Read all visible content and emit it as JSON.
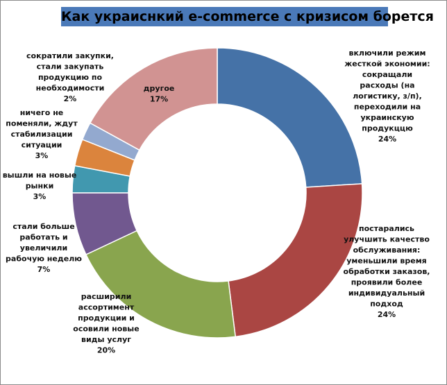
{
  "chart_data": {
    "type": "pie",
    "variant": "donut",
    "title": "Как украиснкий e-commerce с кризисом борется",
    "colors": {
      "title_background": "#4a79b8",
      "slice_1": "#4572a7",
      "slice_2": "#aa4643",
      "slice_3": "#89a54e",
      "slice_4": "#71588f",
      "slice_5": "#4198af",
      "slice_6": "#db843d",
      "slice_7": "#93a9cf",
      "slice_8": "#d19392"
    },
    "slices": [
      {
        "label_lines": [
          "включили режим",
          "жесткой экономии:",
          "сокращали",
          "расходы (на",
          "логистику, з/п),",
          "переходили на",
          "украинскую",
          "продукццю"
        ],
        "value_label": "24%",
        "value": 24
      },
      {
        "label_lines": [
          "постарались",
          "улучшить качество",
          "обслуживания:",
          "уменьшили время",
          "обработки заказов,",
          "проявили более",
          "индивидуальный",
          "подход"
        ],
        "value_label": "24%",
        "value": 24
      },
      {
        "label_lines": [
          "расширили",
          "ассортимент",
          "продукции и",
          "осовили новые",
          "виды услуг"
        ],
        "value_label": "20%",
        "value": 20
      },
      {
        "label_lines": [
          "стали больше",
          "работать и",
          "увеличили",
          "рабочую неделю"
        ],
        "value_label": "7%",
        "value": 7
      },
      {
        "label_lines": [
          "вышли на новые",
          "рынки"
        ],
        "value_label": "3%",
        "value": 3
      },
      {
        "label_lines": [
          "ничего не",
          "поменяли, ждут",
          "стабилизации",
          "ситуации"
        ],
        "value_label": "3%",
        "value": 3
      },
      {
        "label_lines": [
          "сократили закупки,",
          "стали закупать",
          "продукцию по",
          "необходимости"
        ],
        "value_label": "2%",
        "value": 2
      },
      {
        "label_lines": [
          "другое"
        ],
        "value_label": "17%",
        "value": 17
      }
    ]
  }
}
